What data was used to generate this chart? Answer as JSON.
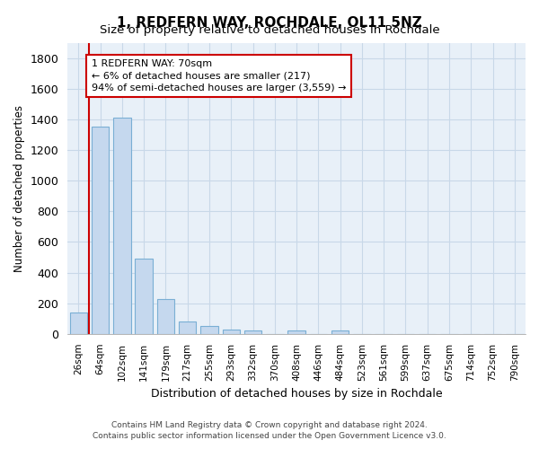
{
  "title": "1, REDFERN WAY, ROCHDALE, OL11 5NZ",
  "subtitle": "Size of property relative to detached houses in Rochdale",
  "xlabel": "Distribution of detached houses by size in Rochdale",
  "ylabel": "Number of detached properties",
  "bar_color": "#c5d8ee",
  "bar_edge_color": "#7aafd4",
  "grid_color": "#c8d8e8",
  "background_color": "#e8f0f8",
  "categories": [
    "26sqm",
    "64sqm",
    "102sqm",
    "141sqm",
    "179sqm",
    "217sqm",
    "255sqm",
    "293sqm",
    "332sqm",
    "370sqm",
    "408sqm",
    "446sqm",
    "484sqm",
    "523sqm",
    "561sqm",
    "599sqm",
    "637sqm",
    "675sqm",
    "714sqm",
    "752sqm",
    "790sqm"
  ],
  "values": [
    140,
    1355,
    1410,
    490,
    230,
    80,
    50,
    28,
    20,
    0,
    20,
    0,
    20,
    0,
    0,
    0,
    0,
    0,
    0,
    0,
    0
  ],
  "ylim": [
    0,
    1900
  ],
  "yticks": [
    0,
    200,
    400,
    600,
    800,
    1000,
    1200,
    1400,
    1600,
    1800
  ],
  "property_line_color": "#cc0000",
  "annotation_text": "1 REDFERN WAY: 70sqm\n← 6% of detached houses are smaller (217)\n94% of semi-detached houses are larger (3,559) →",
  "annotation_box_color": "#ffffff",
  "annotation_box_edge": "#cc0000",
  "footer_line1": "Contains HM Land Registry data © Crown copyright and database right 2024.",
  "footer_line2": "Contains public sector information licensed under the Open Government Licence v3.0."
}
